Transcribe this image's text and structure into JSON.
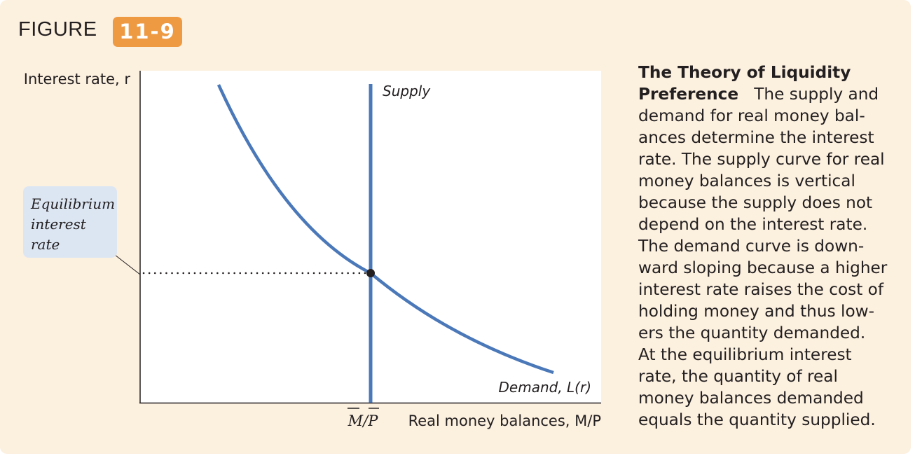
{
  "figure": {
    "label": "FIGURE",
    "number": "11-9"
  },
  "diagram": {
    "y_axis_label": "Interest rate, r",
    "x_axis_label": "Real money balances, M/P",
    "x_marker_label": "M/P",
    "supply_label": "Supply",
    "demand_label": "Demand, L(r)",
    "callout_lines": [
      "Equilibrium",
      "interest",
      "rate"
    ],
    "colors": {
      "curve": "#4a78b8",
      "callout": "#dce6f3",
      "plot_bg": "#ffffff",
      "panel_bg": "#fcf0df",
      "badge": "#ee9a43"
    }
  },
  "caption": {
    "title": "The Theory of Liquidity Preference",
    "body_lines": [
      "The supply and",
      "demand for real money bal-",
      "ances determine the interest",
      "rate. The supply curve for real",
      "money balances is vertical",
      "because the supply does not",
      "depend on the interest rate.",
      "The demand curve is down-",
      "ward sloping because a higher",
      "interest rate raises the cost of",
      "holding money and thus low-",
      "ers the quantity demanded.",
      "At the equilibrium interest",
      "rate, the quantity of real",
      "money balances demanded",
      "equals the quantity supplied."
    ]
  }
}
